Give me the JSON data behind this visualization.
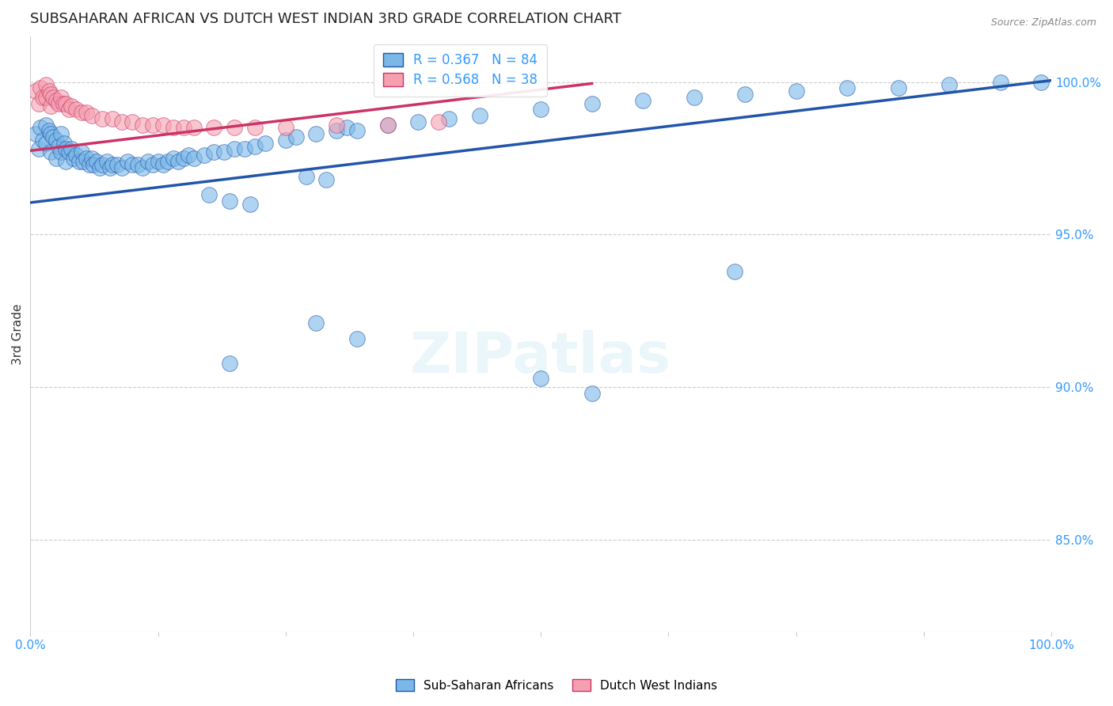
{
  "title": "SUBSAHARAN AFRICAN VS DUTCH WEST INDIAN 3RD GRADE CORRELATION CHART",
  "source": "Source: ZipAtlas.com",
  "ylabel": "3rd Grade",
  "ylabel_right_vals": [
    1.0,
    0.95,
    0.9,
    0.85
  ],
  "legend1_label": "R = 0.367   N = 84",
  "legend2_label": "R = 0.568   N = 38",
  "scatter1_color": "#7bb8e8",
  "scatter2_color": "#f4a0b0",
  "trendline1_color": "#2255aa",
  "trendline2_color": "#cc3366",
  "background_color": "#ffffff",
  "xmin": 0.0,
  "xmax": 1.0,
  "ymin": 0.82,
  "ymax": 1.015,
  "blue_x": [
    0.005,
    0.008,
    0.01,
    0.012,
    0.015,
    0.015,
    0.018,
    0.02,
    0.02,
    0.022,
    0.025,
    0.025,
    0.028,
    0.03,
    0.03,
    0.033,
    0.035,
    0.035,
    0.038,
    0.04,
    0.042,
    0.045,
    0.048,
    0.05,
    0.052,
    0.055,
    0.058,
    0.06,
    0.062,
    0.065,
    0.068,
    0.07,
    0.075,
    0.078,
    0.08,
    0.085,
    0.09,
    0.095,
    0.1,
    0.105,
    0.11,
    0.115,
    0.12,
    0.125,
    0.13,
    0.135,
    0.14,
    0.145,
    0.15,
    0.155,
    0.16,
    0.17,
    0.18,
    0.19,
    0.2,
    0.21,
    0.22,
    0.23,
    0.25,
    0.26,
    0.28,
    0.3,
    0.31,
    0.32,
    0.35,
    0.38,
    0.41,
    0.44,
    0.5,
    0.55,
    0.6,
    0.65,
    0.7,
    0.75,
    0.8,
    0.85,
    0.9,
    0.95,
    0.99,
    0.27,
    0.29,
    0.175,
    0.195,
    0.215
  ],
  "blue_y": [
    0.983,
    0.978,
    0.985,
    0.981,
    0.986,
    0.98,
    0.984,
    0.983,
    0.977,
    0.982,
    0.981,
    0.975,
    0.979,
    0.983,
    0.977,
    0.98,
    0.978,
    0.974,
    0.977,
    0.978,
    0.975,
    0.976,
    0.974,
    0.977,
    0.974,
    0.975,
    0.973,
    0.975,
    0.973,
    0.974,
    0.972,
    0.973,
    0.974,
    0.972,
    0.973,
    0.973,
    0.972,
    0.974,
    0.973,
    0.973,
    0.972,
    0.974,
    0.973,
    0.974,
    0.973,
    0.974,
    0.975,
    0.974,
    0.975,
    0.976,
    0.975,
    0.976,
    0.977,
    0.977,
    0.978,
    0.978,
    0.979,
    0.98,
    0.981,
    0.982,
    0.983,
    0.984,
    0.985,
    0.984,
    0.986,
    0.987,
    0.988,
    0.989,
    0.991,
    0.993,
    0.994,
    0.995,
    0.996,
    0.997,
    0.998,
    0.998,
    0.999,
    1.0,
    1.0,
    0.969,
    0.968,
    0.963,
    0.961,
    0.96
  ],
  "blue_x_low": [
    0.28,
    0.32,
    0.195,
    0.5,
    0.55,
    0.69
  ],
  "blue_y_low": [
    0.921,
    0.916,
    0.908,
    0.903,
    0.898,
    0.938
  ],
  "pink_x": [
    0.005,
    0.008,
    0.01,
    0.012,
    0.015,
    0.015,
    0.018,
    0.02,
    0.02,
    0.022,
    0.025,
    0.028,
    0.03,
    0.032,
    0.035,
    0.038,
    0.04,
    0.045,
    0.05,
    0.055,
    0.06,
    0.07,
    0.08,
    0.09,
    0.1,
    0.11,
    0.12,
    0.13,
    0.14,
    0.15,
    0.16,
    0.18,
    0.2,
    0.22,
    0.25,
    0.3,
    0.35,
    0.4
  ],
  "pink_y": [
    0.997,
    0.993,
    0.998,
    0.995,
    0.999,
    0.995,
    0.997,
    0.996,
    0.992,
    0.995,
    0.994,
    0.993,
    0.995,
    0.993,
    0.993,
    0.991,
    0.992,
    0.991,
    0.99,
    0.99,
    0.989,
    0.988,
    0.988,
    0.987,
    0.987,
    0.986,
    0.986,
    0.986,
    0.985,
    0.985,
    0.985,
    0.985,
    0.985,
    0.985,
    0.985,
    0.986,
    0.986,
    0.987
  ],
  "trendline1_x": [
    0.0,
    1.0
  ],
  "trendline1_y": [
    0.9605,
    1.0005
  ],
  "trendline2_x": [
    0.0,
    0.55
  ],
  "trendline2_y": [
    0.9775,
    0.9995
  ]
}
